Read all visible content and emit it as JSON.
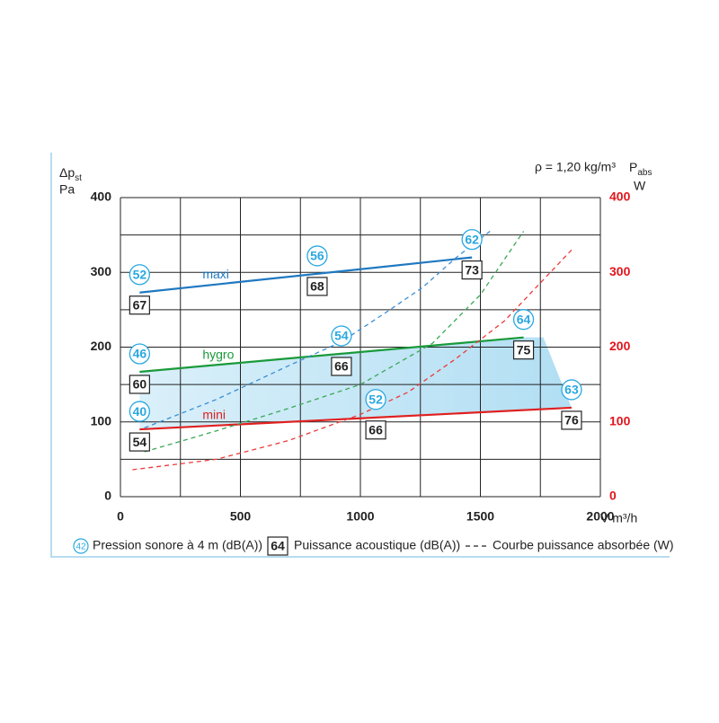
{
  "chart_data": {
    "type": "line",
    "density_note": "ρ = 1,20 kg/m³",
    "y_label": {
      "main": "Δp",
      "sub": "st",
      "unit": "Pa"
    },
    "y2_label": {
      "main": "P",
      "sub": "abs",
      "unit": "W"
    },
    "x_label": "V̇ m³/h",
    "xlim": [
      0,
      2000
    ],
    "xticks": [
      0,
      500,
      1000,
      1500,
      2000
    ],
    "xgrid": [
      0,
      250,
      500,
      750,
      1000,
      1250,
      1500,
      1750,
      2000
    ],
    "ylim": [
      0,
      400
    ],
    "yticks": [
      0,
      100,
      200,
      300,
      400
    ],
    "ygrid": [
      0,
      50,
      100,
      150,
      200,
      250,
      300,
      350,
      400
    ],
    "y2lim": [
      0,
      400
    ],
    "y2ticks": [
      0,
      100,
      200,
      300,
      400
    ],
    "y2_color": "#e3141b",
    "grid": true,
    "area_color": "#bfe3f5",
    "series": [
      {
        "name": "maxi",
        "color": "#1f78c1",
        "dash": false,
        "x": [
          80,
          1465
        ],
        "values": [
          273,
          320
        ]
      },
      {
        "name": "hygro",
        "color": "#1a9a3a",
        "dash": false,
        "x": [
          80,
          1680
        ],
        "values": [
          167,
          213
        ]
      },
      {
        "name": "mini",
        "color": "#e02020",
        "dash": false,
        "x": [
          80,
          1880
        ],
        "values": [
          90,
          119
        ]
      },
      {
        "color": "#3b8fd6",
        "dash": true,
        "axis": "y2",
        "x": [
          100,
          400,
          700,
          920,
          1100,
          1260,
          1400,
          1540
        ],
        "values": [
          92,
          130,
          175,
          207,
          245,
          280,
          320,
          355
        ]
      },
      {
        "color": "#3aa856",
        "dash": true,
        "axis": "y2",
        "x": [
          100,
          400,
          700,
          1000,
          1300,
          1500,
          1680
        ],
        "values": [
          60,
          88,
          118,
          150,
          205,
          270,
          355
        ]
      },
      {
        "color": "#ec3a3a",
        "dash": true,
        "axis": "y2",
        "x": [
          50,
          400,
          700,
          1000,
          1200,
          1400,
          1600,
          1880
        ],
        "values": [
          36,
          50,
          75,
          110,
          140,
          185,
          235,
          330
        ]
      }
    ],
    "operating_points": [
      {
        "x": 80,
        "y": 273,
        "sound_pressure": "52",
        "sound_power": "67"
      },
      {
        "x": 820,
        "y": 298,
        "sound_pressure": "56",
        "sound_power": "68"
      },
      {
        "x": 1465,
        "y": 320,
        "sound_pressure": "62",
        "sound_power": "73"
      },
      {
        "x": 80,
        "y": 167,
        "sound_pressure": "46",
        "sound_power": "60"
      },
      {
        "x": 921,
        "y": 191,
        "sound_pressure": "54",
        "sound_power": "66"
      },
      {
        "x": 1680,
        "y": 213,
        "sound_pressure": "64",
        "sound_power": "75"
      },
      {
        "x": 80,
        "y": 90,
        "sound_pressure": "40",
        "sound_power": "54"
      },
      {
        "x": 1064,
        "y": 106,
        "sound_pressure": "52",
        "sound_power": "66"
      },
      {
        "x": 1880,
        "y": 119,
        "sound_pressure": "63",
        "sound_power": "76"
      }
    ],
    "legend": {
      "pressure_sample": "42",
      "pressure_text": "Pression sonore à 4 m (dB(A))",
      "power_sample": "64",
      "power_text": "Puissance acoustique (dB(A))",
      "curve_text": "Courbe puissance absorbée (W)"
    }
  }
}
